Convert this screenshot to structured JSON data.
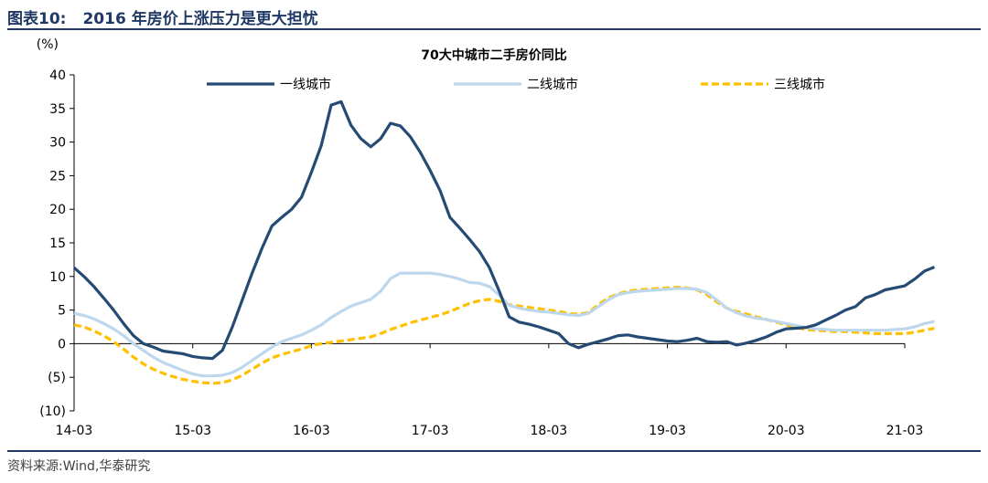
{
  "figure": {
    "number": "图表10:",
    "title": "2016 年房价上涨压力是更大担忧",
    "source": "资料来源:Wind,华泰研究"
  },
  "colors": {
    "header": "#1f3864",
    "tier1": "#254a73",
    "tier2": "#bdd7ee",
    "tier3": "#ffc000"
  },
  "chart_data": {
    "type": "line",
    "title": "70大中城市二手房价同比",
    "ylabel": "(%)",
    "ylim": [
      -10,
      40
    ],
    "yticks": [
      -10,
      -5,
      0,
      5,
      10,
      15,
      20,
      25,
      30,
      35,
      40
    ],
    "ytick_labels": [
      "(10)",
      "(5)",
      "0",
      "5",
      "10",
      "15",
      "20",
      "25",
      "30",
      "35",
      "40"
    ],
    "xlim": [
      "2014-03",
      "2021-03"
    ],
    "xticks": [
      "2014-03",
      "2015-03",
      "2016-03",
      "2017-03",
      "2018-03",
      "2019-03",
      "2020-03",
      "2021-03"
    ],
    "xtick_labels": [
      "14-03",
      "15-03",
      "16-03",
      "17-03",
      "18-03",
      "19-03",
      "20-03",
      "21-03"
    ],
    "legend_position": "top",
    "grid": false,
    "series": [
      {
        "name": "一线城市",
        "style": "solid",
        "color": "#254a73",
        "points": [
          [
            "2014-03",
            11.3
          ],
          [
            "2014-04",
            10.0
          ],
          [
            "2014-05",
            8.5
          ],
          [
            "2014-06",
            6.8
          ],
          [
            "2014-07",
            5.0
          ],
          [
            "2014-08",
            3.0
          ],
          [
            "2014-09",
            1.2
          ],
          [
            "2014-10",
            0.0
          ],
          [
            "2014-11",
            -0.5
          ],
          [
            "2014-12",
            -1.1
          ],
          [
            "2015-01",
            -1.3
          ],
          [
            "2015-02",
            -1.5
          ],
          [
            "2015-03",
            -1.9
          ],
          [
            "2015-04",
            -2.1
          ],
          [
            "2015-05",
            -2.2
          ],
          [
            "2015-06",
            -1.0
          ],
          [
            "2015-07",
            2.5
          ],
          [
            "2015-08",
            6.5
          ],
          [
            "2015-09",
            10.5
          ],
          [
            "2015-10",
            14.2
          ],
          [
            "2015-11",
            17.5
          ],
          [
            "2015-12",
            18.8
          ],
          [
            "2016-01",
            20.0
          ],
          [
            "2016-02",
            21.8
          ],
          [
            "2016-03",
            25.5
          ],
          [
            "2016-04",
            29.5
          ],
          [
            "2016-05",
            35.5
          ],
          [
            "2016-06",
            36.0
          ],
          [
            "2016-07",
            32.5
          ],
          [
            "2016-08",
            30.5
          ],
          [
            "2016-09",
            29.3
          ],
          [
            "2016-10",
            30.5
          ],
          [
            "2016-11",
            32.8
          ],
          [
            "2016-12",
            32.4
          ],
          [
            "2017-01",
            30.8
          ],
          [
            "2017-02",
            28.5
          ],
          [
            "2017-03",
            25.8
          ],
          [
            "2017-04",
            22.8
          ],
          [
            "2017-05",
            18.8
          ],
          [
            "2017-06",
            17.2
          ],
          [
            "2017-07",
            15.5
          ],
          [
            "2017-08",
            13.7
          ],
          [
            "2017-09",
            11.3
          ],
          [
            "2017-10",
            7.8
          ],
          [
            "2017-11",
            4.0
          ],
          [
            "2017-12",
            3.2
          ],
          [
            "2018-01",
            2.9
          ],
          [
            "2018-02",
            2.5
          ],
          [
            "2018-03",
            2.0
          ],
          [
            "2018-04",
            1.5
          ],
          [
            "2018-05",
            0.0
          ],
          [
            "2018-06",
            -0.6
          ],
          [
            "2018-07",
            -0.1
          ],
          [
            "2018-08",
            0.3
          ],
          [
            "2018-09",
            0.7
          ],
          [
            "2018-10",
            1.2
          ],
          [
            "2018-11",
            1.3
          ],
          [
            "2018-12",
            1.0
          ],
          [
            "2019-01",
            0.8
          ],
          [
            "2019-02",
            0.6
          ],
          [
            "2019-03",
            0.4
          ],
          [
            "2019-04",
            0.3
          ],
          [
            "2019-05",
            0.5
          ],
          [
            "2019-06",
            0.8
          ],
          [
            "2019-07",
            0.3
          ],
          [
            "2019-08",
            0.2
          ],
          [
            "2019-09",
            0.3
          ],
          [
            "2019-10",
            -0.2
          ],
          [
            "2019-11",
            0.1
          ],
          [
            "2019-12",
            0.5
          ],
          [
            "2020-01",
            1.0
          ],
          [
            "2020-02",
            1.7
          ],
          [
            "2020-03",
            2.2
          ],
          [
            "2020-04",
            2.3
          ],
          [
            "2020-05",
            2.4
          ],
          [
            "2020-06",
            2.8
          ],
          [
            "2020-07",
            3.5
          ],
          [
            "2020-08",
            4.2
          ],
          [
            "2020-09",
            5.0
          ],
          [
            "2020-10",
            5.5
          ],
          [
            "2020-11",
            6.8
          ],
          [
            "2020-12",
            7.3
          ],
          [
            "2021-01",
            8.0
          ],
          [
            "2021-02",
            8.3
          ],
          [
            "2021-03",
            8.6
          ],
          [
            "2021-04",
            9.6
          ],
          [
            "2021-05",
            10.8
          ],
          [
            "2021-06",
            11.4
          ]
        ]
      },
      {
        "name": "二线城市",
        "style": "solid",
        "color": "#bdd7ee",
        "points": [
          [
            "2014-03",
            4.5
          ],
          [
            "2014-04",
            4.2
          ],
          [
            "2014-05",
            3.7
          ],
          [
            "2014-06",
            3.0
          ],
          [
            "2014-07",
            2.2
          ],
          [
            "2014-08",
            1.2
          ],
          [
            "2014-09",
            0.0
          ],
          [
            "2014-10",
            -1.0
          ],
          [
            "2014-11",
            -2.0
          ],
          [
            "2014-12",
            -2.8
          ],
          [
            "2015-01",
            -3.4
          ],
          [
            "2015-02",
            -4.0
          ],
          [
            "2015-03",
            -4.5
          ],
          [
            "2015-04",
            -4.8
          ],
          [
            "2015-05",
            -4.8
          ],
          [
            "2015-06",
            -4.7
          ],
          [
            "2015-07",
            -4.3
          ],
          [
            "2015-08",
            -3.5
          ],
          [
            "2015-09",
            -2.5
          ],
          [
            "2015-10",
            -1.5
          ],
          [
            "2015-11",
            -0.5
          ],
          [
            "2015-12",
            0.3
          ],
          [
            "2016-01",
            0.8
          ],
          [
            "2016-02",
            1.3
          ],
          [
            "2016-03",
            2.0
          ],
          [
            "2016-04",
            2.8
          ],
          [
            "2016-05",
            3.9
          ],
          [
            "2016-06",
            4.8
          ],
          [
            "2016-07",
            5.6
          ],
          [
            "2016-08",
            6.1
          ],
          [
            "2016-09",
            6.6
          ],
          [
            "2016-10",
            7.8
          ],
          [
            "2016-11",
            9.7
          ],
          [
            "2016-12",
            10.5
          ],
          [
            "2017-01",
            10.5
          ],
          [
            "2017-02",
            10.5
          ],
          [
            "2017-03",
            10.5
          ],
          [
            "2017-04",
            10.3
          ],
          [
            "2017-05",
            10.0
          ],
          [
            "2017-06",
            9.6
          ],
          [
            "2017-07",
            9.1
          ],
          [
            "2017-08",
            9.0
          ],
          [
            "2017-09",
            8.5
          ],
          [
            "2017-10",
            7.2
          ],
          [
            "2017-11",
            5.7
          ],
          [
            "2017-12",
            5.3
          ],
          [
            "2018-01",
            5.0
          ],
          [
            "2018-02",
            4.8
          ],
          [
            "2018-03",
            4.7
          ],
          [
            "2018-04",
            4.5
          ],
          [
            "2018-05",
            4.3
          ],
          [
            "2018-06",
            4.2
          ],
          [
            "2018-07",
            4.5
          ],
          [
            "2018-08",
            5.5
          ],
          [
            "2018-09",
            6.5
          ],
          [
            "2018-10",
            7.3
          ],
          [
            "2018-11",
            7.6
          ],
          [
            "2018-12",
            7.8
          ],
          [
            "2019-01",
            7.9
          ],
          [
            "2019-02",
            8.0
          ],
          [
            "2019-03",
            8.1
          ],
          [
            "2019-04",
            8.2
          ],
          [
            "2019-05",
            8.2
          ],
          [
            "2019-06",
            8.1
          ],
          [
            "2019-07",
            7.6
          ],
          [
            "2019-08",
            6.5
          ],
          [
            "2019-09",
            5.3
          ],
          [
            "2019-10",
            4.6
          ],
          [
            "2019-11",
            4.1
          ],
          [
            "2019-12",
            3.8
          ],
          [
            "2020-01",
            3.6
          ],
          [
            "2020-02",
            3.3
          ],
          [
            "2020-03",
            3.0
          ],
          [
            "2020-04",
            2.7
          ],
          [
            "2020-05",
            2.4
          ],
          [
            "2020-06",
            2.2
          ],
          [
            "2020-07",
            2.1
          ],
          [
            "2020-08",
            2.0
          ],
          [
            "2020-09",
            2.0
          ],
          [
            "2020-10",
            2.0
          ],
          [
            "2020-11",
            2.0
          ],
          [
            "2020-12",
            2.0
          ],
          [
            "2021-01",
            2.0
          ],
          [
            "2021-02",
            2.1
          ],
          [
            "2021-03",
            2.2
          ],
          [
            "2021-04",
            2.5
          ],
          [
            "2021-05",
            3.0
          ],
          [
            "2021-06",
            3.3
          ]
        ]
      },
      {
        "name": "三线城市",
        "style": "dashed",
        "color": "#ffc000",
        "points": [
          [
            "2014-03",
            2.8
          ],
          [
            "2014-04",
            2.5
          ],
          [
            "2014-05",
            1.9
          ],
          [
            "2014-06",
            1.2
          ],
          [
            "2014-07",
            0.3
          ],
          [
            "2014-08",
            -0.8
          ],
          [
            "2014-09",
            -2.0
          ],
          [
            "2014-10",
            -3.0
          ],
          [
            "2014-11",
            -3.8
          ],
          [
            "2014-12",
            -4.4
          ],
          [
            "2015-01",
            -4.9
          ],
          [
            "2015-02",
            -5.3
          ],
          [
            "2015-03",
            -5.6
          ],
          [
            "2015-04",
            -5.8
          ],
          [
            "2015-05",
            -5.9
          ],
          [
            "2015-06",
            -5.8
          ],
          [
            "2015-07",
            -5.4
          ],
          [
            "2015-08",
            -4.7
          ],
          [
            "2015-09",
            -3.8
          ],
          [
            "2015-10",
            -2.9
          ],
          [
            "2015-11",
            -2.1
          ],
          [
            "2015-12",
            -1.6
          ],
          [
            "2016-01",
            -1.2
          ],
          [
            "2016-02",
            -0.8
          ],
          [
            "2016-03",
            -0.3
          ],
          [
            "2016-04",
            0.0
          ],
          [
            "2016-05",
            0.2
          ],
          [
            "2016-06",
            0.4
          ],
          [
            "2016-07",
            0.6
          ],
          [
            "2016-08",
            0.8
          ],
          [
            "2016-09",
            1.0
          ],
          [
            "2016-10",
            1.5
          ],
          [
            "2016-11",
            2.1
          ],
          [
            "2016-12",
            2.6
          ],
          [
            "2017-01",
            3.1
          ],
          [
            "2017-02",
            3.5
          ],
          [
            "2017-03",
            3.9
          ],
          [
            "2017-04",
            4.3
          ],
          [
            "2017-05",
            4.8
          ],
          [
            "2017-06",
            5.4
          ],
          [
            "2017-07",
            6.0
          ],
          [
            "2017-08",
            6.4
          ],
          [
            "2017-09",
            6.6
          ],
          [
            "2017-10",
            6.3
          ],
          [
            "2017-11",
            5.8
          ],
          [
            "2017-12",
            5.6
          ],
          [
            "2018-01",
            5.4
          ],
          [
            "2018-02",
            5.2
          ],
          [
            "2018-03",
            5.0
          ],
          [
            "2018-04",
            4.8
          ],
          [
            "2018-05",
            4.5
          ],
          [
            "2018-06",
            4.4
          ],
          [
            "2018-07",
            4.6
          ],
          [
            "2018-08",
            5.8
          ],
          [
            "2018-09",
            6.8
          ],
          [
            "2018-10",
            7.4
          ],
          [
            "2018-11",
            7.8
          ],
          [
            "2018-12",
            8.0
          ],
          [
            "2019-01",
            8.1
          ],
          [
            "2019-02",
            8.2
          ],
          [
            "2019-03",
            8.3
          ],
          [
            "2019-04",
            8.4
          ],
          [
            "2019-05",
            8.3
          ],
          [
            "2019-06",
            8.0
          ],
          [
            "2019-07",
            7.3
          ],
          [
            "2019-08",
            6.2
          ],
          [
            "2019-09",
            5.3
          ],
          [
            "2019-10",
            4.8
          ],
          [
            "2019-11",
            4.4
          ],
          [
            "2019-12",
            4.0
          ],
          [
            "2020-01",
            3.6
          ],
          [
            "2020-02",
            3.2
          ],
          [
            "2020-03",
            2.8
          ],
          [
            "2020-04",
            2.4
          ],
          [
            "2020-05",
            2.1
          ],
          [
            "2020-06",
            2.0
          ],
          [
            "2020-07",
            1.9
          ],
          [
            "2020-08",
            1.8
          ],
          [
            "2020-09",
            1.8
          ],
          [
            "2020-10",
            1.7
          ],
          [
            "2020-11",
            1.6
          ],
          [
            "2020-12",
            1.5
          ],
          [
            "2021-01",
            1.5
          ],
          [
            "2021-02",
            1.5
          ],
          [
            "2021-03",
            1.5
          ],
          [
            "2021-04",
            1.7
          ],
          [
            "2021-05",
            2.0
          ],
          [
            "2021-06",
            2.3
          ]
        ]
      }
    ]
  }
}
